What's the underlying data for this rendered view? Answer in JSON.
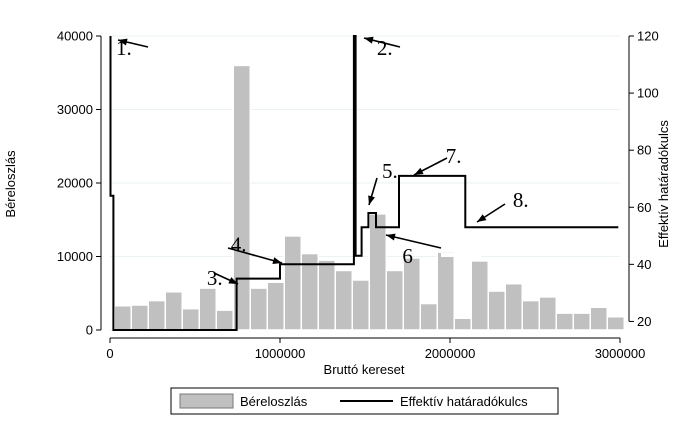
{
  "chart_data": {
    "type": "bar+line",
    "xlabel": "Bruttó kereset",
    "ylabel_left": "Béreloszlás",
    "ylabel_right": "Effektív határadókulcs",
    "x_ticks": [
      0,
      1000000,
      2000000,
      3000000
    ],
    "x_tick_labels": [
      "0",
      "1000000",
      "2000000",
      "3000000"
    ],
    "xlim": [
      0,
      3000000
    ],
    "y_left_ticks": [
      0,
      10000,
      20000,
      30000,
      40000
    ],
    "y_left_tick_labels": [
      "0",
      "10000",
      "20000",
      "30000",
      "40000"
    ],
    "ylim_left": [
      0,
      40000
    ],
    "y_right_ticks": [
      20,
      40,
      60,
      80,
      100,
      120
    ],
    "y_right_tick_labels": [
      "20",
      "40",
      "60",
      "80",
      "100",
      "120"
    ],
    "ylim_right": [
      17,
      120
    ],
    "grid": "horizontal at left-axis ticks",
    "legend": {
      "placement": "bottom-center",
      "entries": [
        "Béreloszlás",
        "Effektív határadókulcs"
      ]
    },
    "histogram": {
      "name": "Béreloszlás",
      "bin_width": 100000,
      "bin_starts": [
        25000,
        125000,
        225000,
        325000,
        425000,
        525000,
        625000,
        725000,
        825000,
        925000,
        1025000,
        1125000,
        1225000,
        1325000,
        1425000,
        1525000,
        1625000,
        1725000,
        1825000,
        1925000,
        2025000,
        2125000,
        2225000,
        2325000,
        2425000,
        2525000,
        2625000,
        2725000,
        2825000,
        2925000
      ],
      "values": [
        3300,
        3400,
        4000,
        5200,
        2900,
        5700,
        2700,
        36000,
        5700,
        6500,
        12800,
        10400,
        9500,
        8100,
        6800,
        15800,
        8100,
        9800,
        3600,
        10600,
        1600,
        9400,
        5300,
        6300,
        4000,
        4500,
        2300,
        2300,
        3100,
        1800
      ]
    },
    "line": {
      "name": "Effektív határadókulcs",
      "x": [
        3000,
        3000,
        20000,
        20000,
        745000,
        745000,
        800000,
        800000,
        1000000,
        1000000,
        1435000,
        1435000,
        1445000,
        1445000,
        1480000,
        1480000,
        1520000,
        1520000,
        1565000,
        1565000,
        1700000,
        1700000,
        2090000,
        2090000,
        2990000
      ],
      "y": [
        120,
        64,
        64,
        17,
        17,
        35,
        35,
        35,
        35,
        40,
        40,
        120,
        120,
        43,
        43,
        53,
        53,
        58,
        58,
        53,
        53,
        71,
        71,
        53,
        53
      ]
    },
    "annotations": [
      {
        "label": "1.",
        "x": 35000,
        "y": 38500
      },
      {
        "label": "2.",
        "x": 1570000,
        "y": 38500
      },
      {
        "label": "3.",
        "x": 570000,
        "y": 7200
      },
      {
        "label": "4.",
        "x": 710000,
        "y": 11800
      },
      {
        "label": "5.",
        "x": 1600000,
        "y": 21800
      },
      {
        "label": "6",
        "x": 1720000,
        "y": 10200
      },
      {
        "label": "7.",
        "x": 1975000,
        "y": 23800
      },
      {
        "label": "8.",
        "x": 2370000,
        "y": 17800
      }
    ]
  }
}
